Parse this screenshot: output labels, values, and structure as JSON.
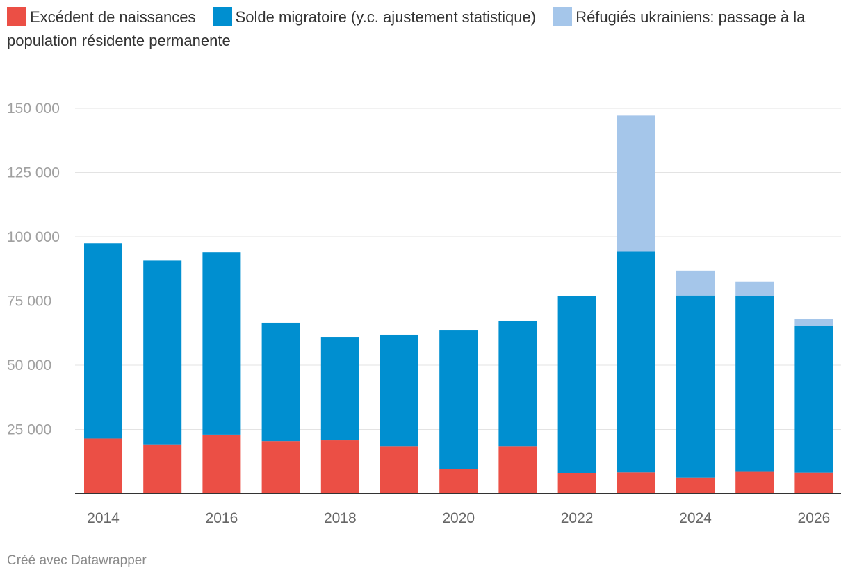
{
  "chart_data": {
    "type": "bar",
    "stacked": true,
    "categories": [
      "2014",
      "2015",
      "2016",
      "2017",
      "2018",
      "2019",
      "2020",
      "2021",
      "2022",
      "2023",
      "2024",
      "2025",
      "2026"
    ],
    "x_tick_labels": [
      "2014",
      "2016",
      "2018",
      "2020",
      "2022",
      "2024",
      "2026"
    ],
    "y_tick_labels": [
      "25 000",
      "50 000",
      "75 000",
      "100 000",
      "125 000",
      "150 000"
    ],
    "y_ticks": [
      25000,
      50000,
      75000,
      100000,
      125000,
      150000
    ],
    "ylim": [
      0,
      150000
    ],
    "series": [
      {
        "name": "Excédent de naissances",
        "color": "#eb4f45",
        "values": [
          21500,
          19000,
          23000,
          20500,
          20800,
          18300,
          9700,
          18300,
          8000,
          8300,
          6300,
          8500,
          8200
        ]
      },
      {
        "name": "Solde migratoire (y.c. ajustement statistique)",
        "color": "#008fd0",
        "values": [
          76000,
          71700,
          71000,
          46000,
          40000,
          43600,
          53800,
          49000,
          68800,
          85900,
          70800,
          68500,
          57000
        ]
      },
      {
        "name": "Réfugiés ukrainiens: passage à la population résidente permanente",
        "color": "#a5c6ea",
        "values": [
          0,
          0,
          0,
          0,
          0,
          0,
          0,
          0,
          0,
          53000,
          9700,
          5500,
          2700
        ]
      }
    ],
    "title": "",
    "xlabel": "",
    "ylabel": "",
    "legend": "top",
    "grid": true
  },
  "footer": {
    "credit": "Créé avec Datawrapper"
  }
}
